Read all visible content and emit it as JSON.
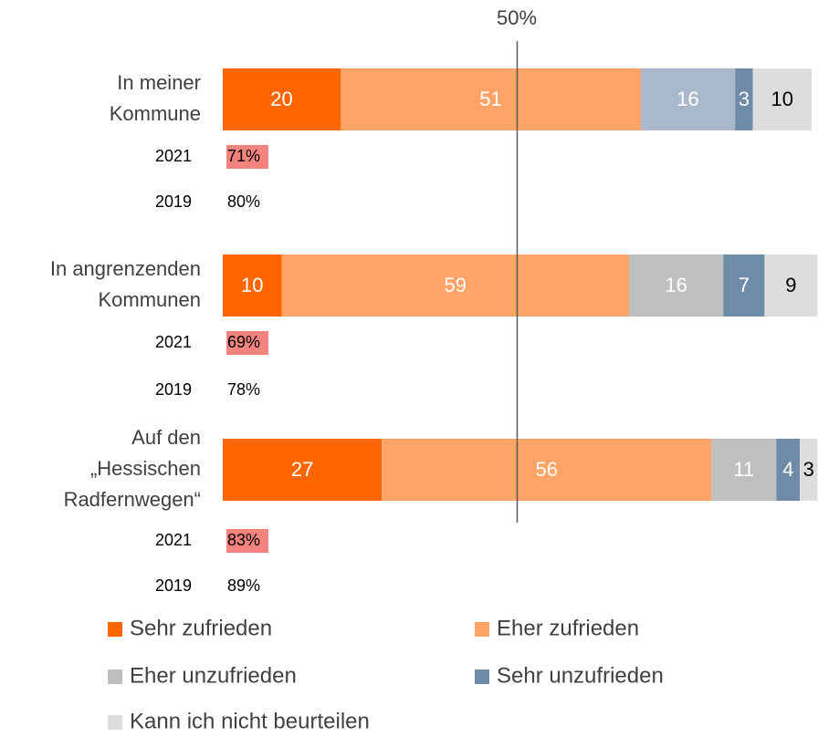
{
  "chart_data": {
    "type": "stacked_barh",
    "categories": [
      "In meiner\nKommune",
      "In angrenzenden\nKommunen",
      "Auf den\n„Hessischen\nRadfernwegen“"
    ],
    "series": [
      {
        "name": "Sehr zufrieden",
        "color": "#FF6600",
        "values": [
          20,
          10,
          27
        ]
      },
      {
        "name": "Eher zufrieden",
        "color": "#FFA366",
        "values": [
          51,
          59,
          56
        ]
      },
      {
        "name": "Eher unzufrieden",
        "color": "#BFBFBF",
        "colors": [
          "#A9B9CB",
          "#BFBFBF",
          "#BFBFBF"
        ],
        "values": [
          16,
          16,
          11
        ]
      },
      {
        "name": "Sehr unzufrieden",
        "color": "#6E8BA8",
        "values": [
          3,
          7,
          4
        ]
      },
      {
        "name": "Kann ich nicht beurteilen",
        "color": "#DDDDDD",
        "values": [
          10,
          9,
          3
        ]
      }
    ],
    "comparison": [
      {
        "label": "2021",
        "highlight": "#F4837D",
        "values": [
          71,
          69,
          83
        ],
        "value_labels": [
          "71%",
          "69%",
          "83%"
        ]
      },
      {
        "label": "2019",
        "values": [
          80,
          78,
          89
        ],
        "value_labels": [
          "80%",
          "78%",
          "89%"
        ]
      }
    ],
    "reference_line": {
      "value": 50,
      "label": "50%"
    },
    "xlim": [
      0,
      100
    ],
    "legend": "bottom"
  }
}
